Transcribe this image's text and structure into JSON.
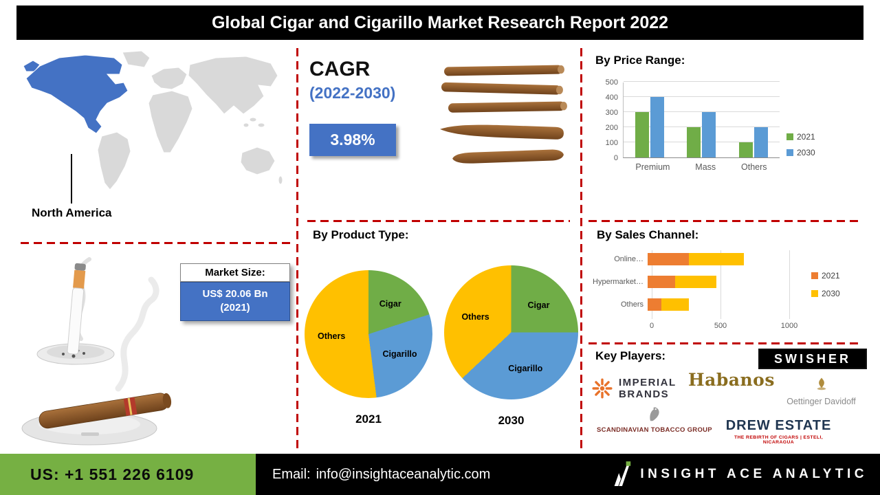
{
  "colors": {
    "accent_blue": "#4472C4",
    "dash_red": "#C00000",
    "footer_green": "#76B043",
    "bar_green": "#70AD47",
    "bar_blue": "#5B9BD5",
    "bar_orange": "#ED7D31",
    "bar_yellow": "#FFC000"
  },
  "header": {
    "title": "Global Cigar and Cigarillo Market Research Report 2022"
  },
  "map": {
    "region_label": "North America"
  },
  "cagr": {
    "heading": "CAGR",
    "period": "(2022-2030)",
    "value": "3.98%"
  },
  "market_size": {
    "label": "Market Size:",
    "value_line1": "US$ 20.06 Bn",
    "value_line2": "(2021)"
  },
  "sections": {
    "price_range": "By Price Range:",
    "product_type": "By Product Type:",
    "sales_channel": "By Sales Channel:",
    "key_players": "Key Players:"
  },
  "chart_data": [
    {
      "id": "price-range",
      "type": "bar",
      "title": "By Price Range:",
      "categories": [
        "Premium",
        "Mass",
        "Others"
      ],
      "series": [
        {
          "name": "2021",
          "color": "#70AD47",
          "values": [
            300,
            200,
            100
          ]
        },
        {
          "name": "2030",
          "color": "#5B9BD5",
          "values": [
            400,
            300,
            200
          ]
        }
      ],
      "ylim": [
        0,
        500
      ],
      "yticks": [
        0,
        100,
        200,
        300,
        400,
        500
      ],
      "grid": true,
      "legend_position": "right"
    },
    {
      "id": "product-type-2021",
      "type": "pie",
      "year_label": "2021",
      "slices": [
        {
          "label": "Cigar",
          "value": 20,
          "color": "#70AD47"
        },
        {
          "label": "Cigarillo",
          "value": 28,
          "color": "#5B9BD5"
        },
        {
          "label": "Others",
          "value": 52,
          "color": "#FFC000"
        }
      ]
    },
    {
      "id": "product-type-2030",
      "type": "pie",
      "year_label": "2030",
      "slices": [
        {
          "label": "Cigar",
          "value": 25,
          "color": "#70AD47"
        },
        {
          "label": "Cigarillo",
          "value": 38,
          "color": "#5B9BD5"
        },
        {
          "label": "Others",
          "value": 37,
          "color": "#FFC000"
        }
      ]
    },
    {
      "id": "sales-channel",
      "type": "stacked-bar-horizontal",
      "title": "By Sales Channel:",
      "categories": [
        "Online…",
        "Hypermarket…",
        "Others"
      ],
      "series": [
        {
          "name": "2021",
          "color": "#ED7D31",
          "values": [
            300,
            200,
            100
          ]
        },
        {
          "name": "2030",
          "color": "#FFC000",
          "values": [
            400,
            300,
            200
          ]
        }
      ],
      "xlim": [
        0,
        1000
      ],
      "xticks": [
        0,
        500,
        1000
      ],
      "grid": true,
      "legend_position": "right"
    }
  ],
  "key_players": {
    "heading": "Key Players:",
    "swisher": "SWISHER",
    "habanos": "Habanos",
    "imperial_line1": "IMPERIAL",
    "imperial_line2": "BRANDS",
    "oettinger": "Oettinger Davidoff",
    "scandinavian": "SCANDINAVIAN TOBACCO GROUP",
    "drew_estate": "DREW ESTATE",
    "drew_estate_tagline": "THE REBIRTH OF CIGARS | ESTELI, NICARAGUA"
  },
  "footer": {
    "phone": "US: +1 551 226 6109",
    "email_label": "Email:",
    "email": "info@insightaceanalytic.com",
    "brand": "INSIGHT ACE ANALYTIC"
  }
}
